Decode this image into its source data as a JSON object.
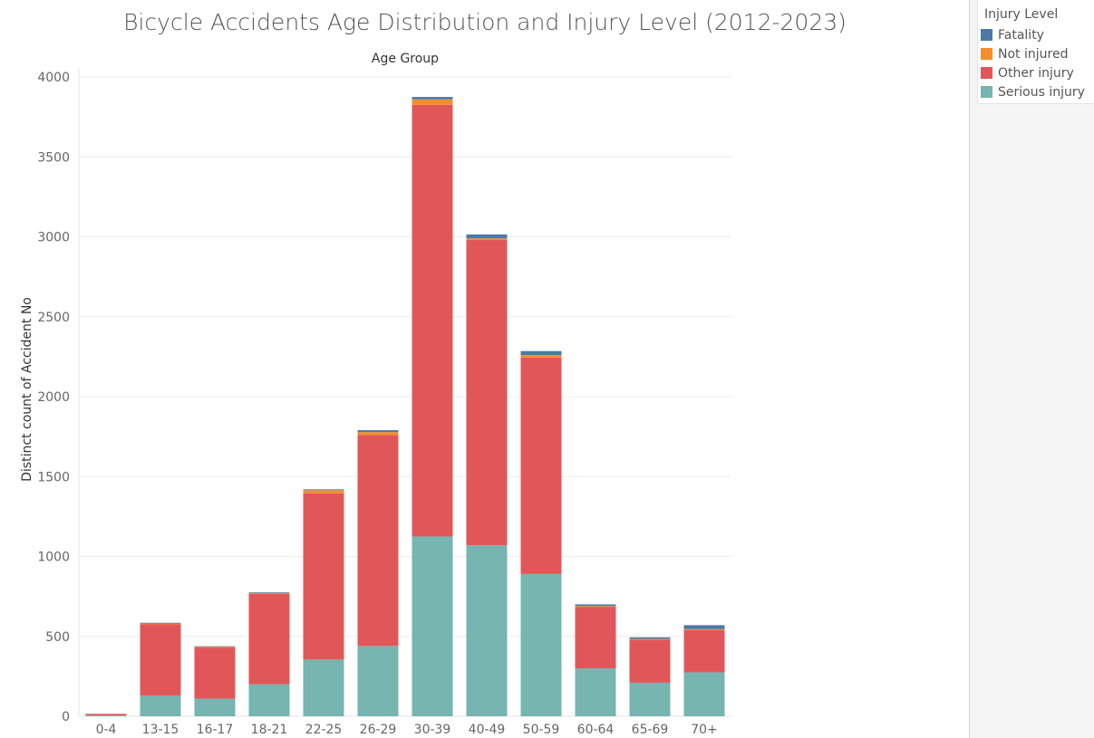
{
  "chart_data": {
    "type": "bar",
    "stacked": true,
    "title": "Bicycle Accidents Age Distribution and Injury Level (2012-2023)",
    "header": "Age Group",
    "ylabel": "Distinct count of Accident No",
    "ylim": [
      0,
      4000
    ],
    "yticks": [
      0,
      500,
      1000,
      1500,
      2000,
      2500,
      3000,
      3500,
      4000
    ],
    "grid": true,
    "categories": [
      "0-4",
      "13-15",
      "16-17",
      "18-21",
      "22-25",
      "26-29",
      "30-39",
      "40-49",
      "50-59",
      "60-64",
      "65-69",
      "70+"
    ],
    "series": [
      {
        "name": "Serious injury",
        "color": "#76b5b0",
        "values": [
          5,
          130,
          110,
          200,
          355,
          440,
          1125,
          1070,
          890,
          300,
          210,
          275
        ]
      },
      {
        "name": "Other injury",
        "color": "#e15759",
        "values": [
          10,
          445,
          320,
          565,
          1040,
          1320,
          2700,
          1910,
          1355,
          385,
          270,
          265
        ]
      },
      {
        "name": "Not injured",
        "color": "#f28e2b",
        "values": [
          0,
          5,
          4,
          5,
          20,
          18,
          35,
          10,
          15,
          5,
          4,
          5
        ]
      },
      {
        "name": "Fatality",
        "color": "#4e79a7",
        "values": [
          0,
          5,
          4,
          5,
          5,
          12,
          15,
          25,
          25,
          10,
          10,
          25
        ]
      }
    ],
    "legend": {
      "title": "Injury Level",
      "position": "right",
      "items": [
        {
          "label": "Fatality",
          "color": "#4e79a7"
        },
        {
          "label": "Not injured",
          "color": "#f28e2b"
        },
        {
          "label": "Other injury",
          "color": "#e15759"
        },
        {
          "label": "Serious injury",
          "color": "#76b5b0"
        }
      ]
    }
  }
}
